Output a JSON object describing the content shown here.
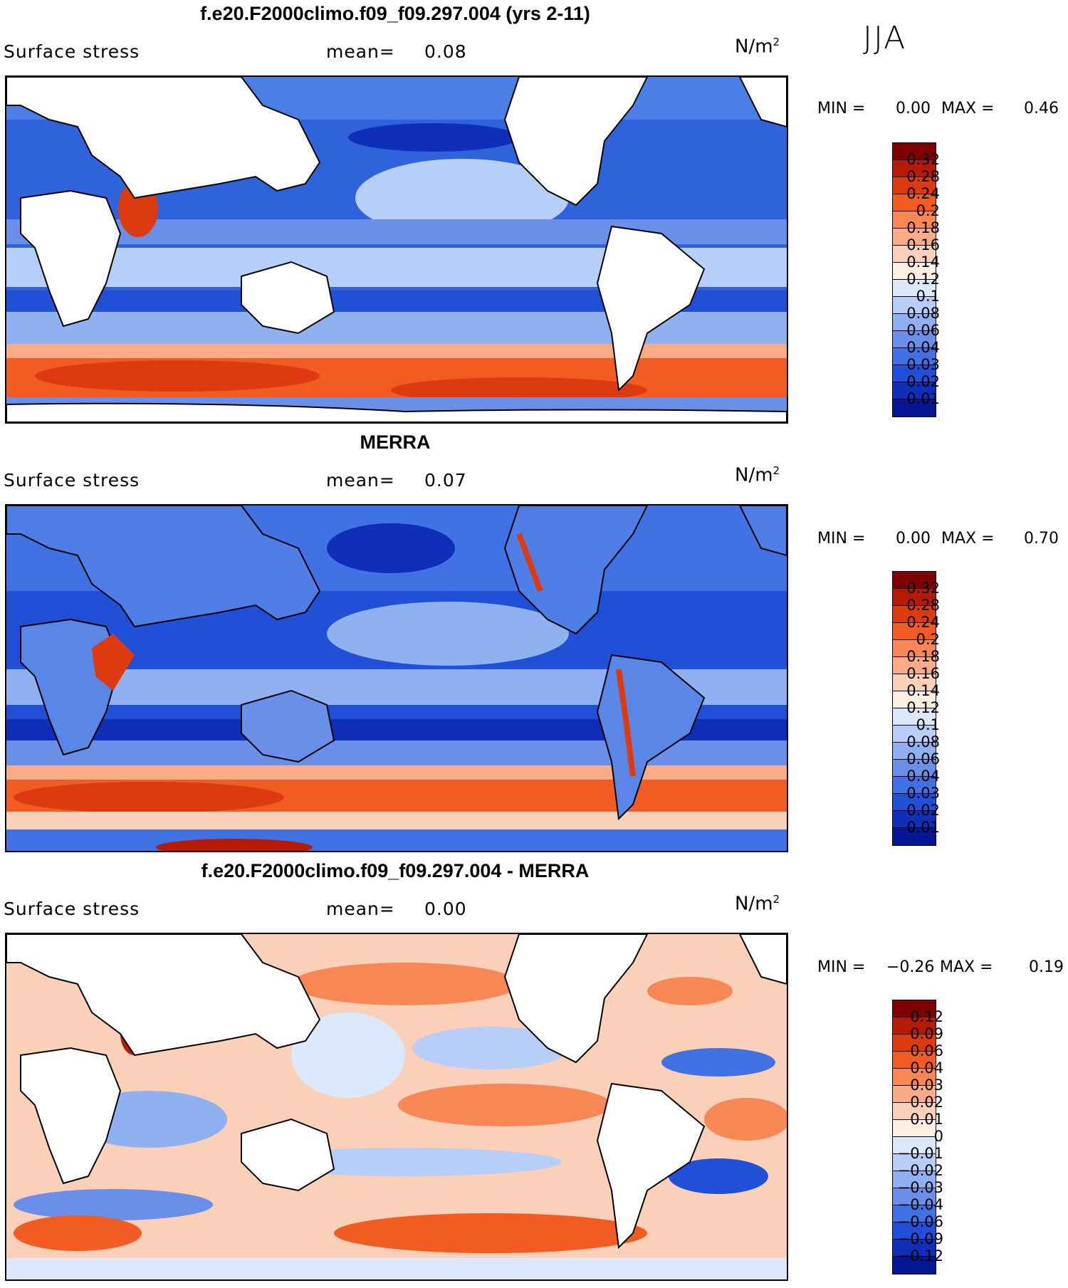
{
  "season": "JJA",
  "panels": [
    {
      "title": "f.e20.F2000climo.f09_f09.297.004 (yrs 2-11)",
      "variable": "Surface stress",
      "mean_label": "mean=",
      "mean_value": "0.08",
      "unit": "N/m",
      "unit_exp": "2",
      "min_label": "MIN =",
      "min_value": "0.00",
      "max_label": "MAX =",
      "max_value": "0.46",
      "colorbar": {
        "labels": [
          "0.32",
          "0.28",
          "0.24",
          "0.2",
          "0.18",
          "0.16",
          "0.14",
          "0.12",
          "0.1",
          "0.08",
          "0.06",
          "0.04",
          "0.03",
          "0.02",
          "0.01"
        ],
        "colors": [
          "#7f0000",
          "#b51a04",
          "#dd3a10",
          "#f25c22",
          "#f98655",
          "#fbac87",
          "#fbd0b8",
          "#fdeee2",
          "#dce8fb",
          "#b7cef8",
          "#8fb0f1",
          "#6a8fe9",
          "#4172e4",
          "#2050d8",
          "#0f2fb8",
          "#061694"
        ]
      }
    },
    {
      "title": "MERRA",
      "variable": "Surface stress",
      "mean_label": "mean=",
      "mean_value": "0.07",
      "unit": "N/m",
      "unit_exp": "2",
      "min_label": "MIN =",
      "min_value": "0.00",
      "max_label": "MAX =",
      "max_value": "0.70",
      "colorbar": {
        "labels": [
          "0.32",
          "0.28",
          "0.24",
          "0.2",
          "0.18",
          "0.16",
          "0.14",
          "0.12",
          "0.1",
          "0.08",
          "0.06",
          "0.04",
          "0.03",
          "0.02",
          "0.01"
        ],
        "colors": [
          "#7f0000",
          "#b51a04",
          "#dd3a10",
          "#f25c22",
          "#f98655",
          "#fbac87",
          "#fbd0b8",
          "#fdeee2",
          "#dce8fb",
          "#b7cef8",
          "#8fb0f1",
          "#6a8fe9",
          "#4172e4",
          "#2050d8",
          "#0f2fb8",
          "#061694"
        ]
      }
    },
    {
      "title": "f.e20.F2000climo.f09_f09.297.004 - MERRA",
      "variable": "Surface stress",
      "mean_label": "mean=",
      "mean_value": "0.00",
      "unit": "N/m",
      "unit_exp": "2",
      "min_label": "MIN =",
      "min_value": "−0.26",
      "max_label": "MAX =",
      "max_value": "0.19",
      "colorbar": {
        "labels": [
          "0.12",
          "0.09",
          "0.06",
          "0.04",
          "0.03",
          "0.02",
          "0.01",
          "0",
          "−0.01",
          "−0.02",
          "−0.03",
          "−0.04",
          "−0.06",
          "−0.09",
          "−0.12"
        ],
        "colors": [
          "#7f0000",
          "#b51a04",
          "#dd3a10",
          "#f25c22",
          "#f98655",
          "#fbac87",
          "#fbd0b8",
          "#fdeee2",
          "#dce8fb",
          "#b7cef8",
          "#8fb0f1",
          "#6a8fe9",
          "#4172e4",
          "#2050d8",
          "#0f2fb8",
          "#061694"
        ]
      }
    }
  ]
}
